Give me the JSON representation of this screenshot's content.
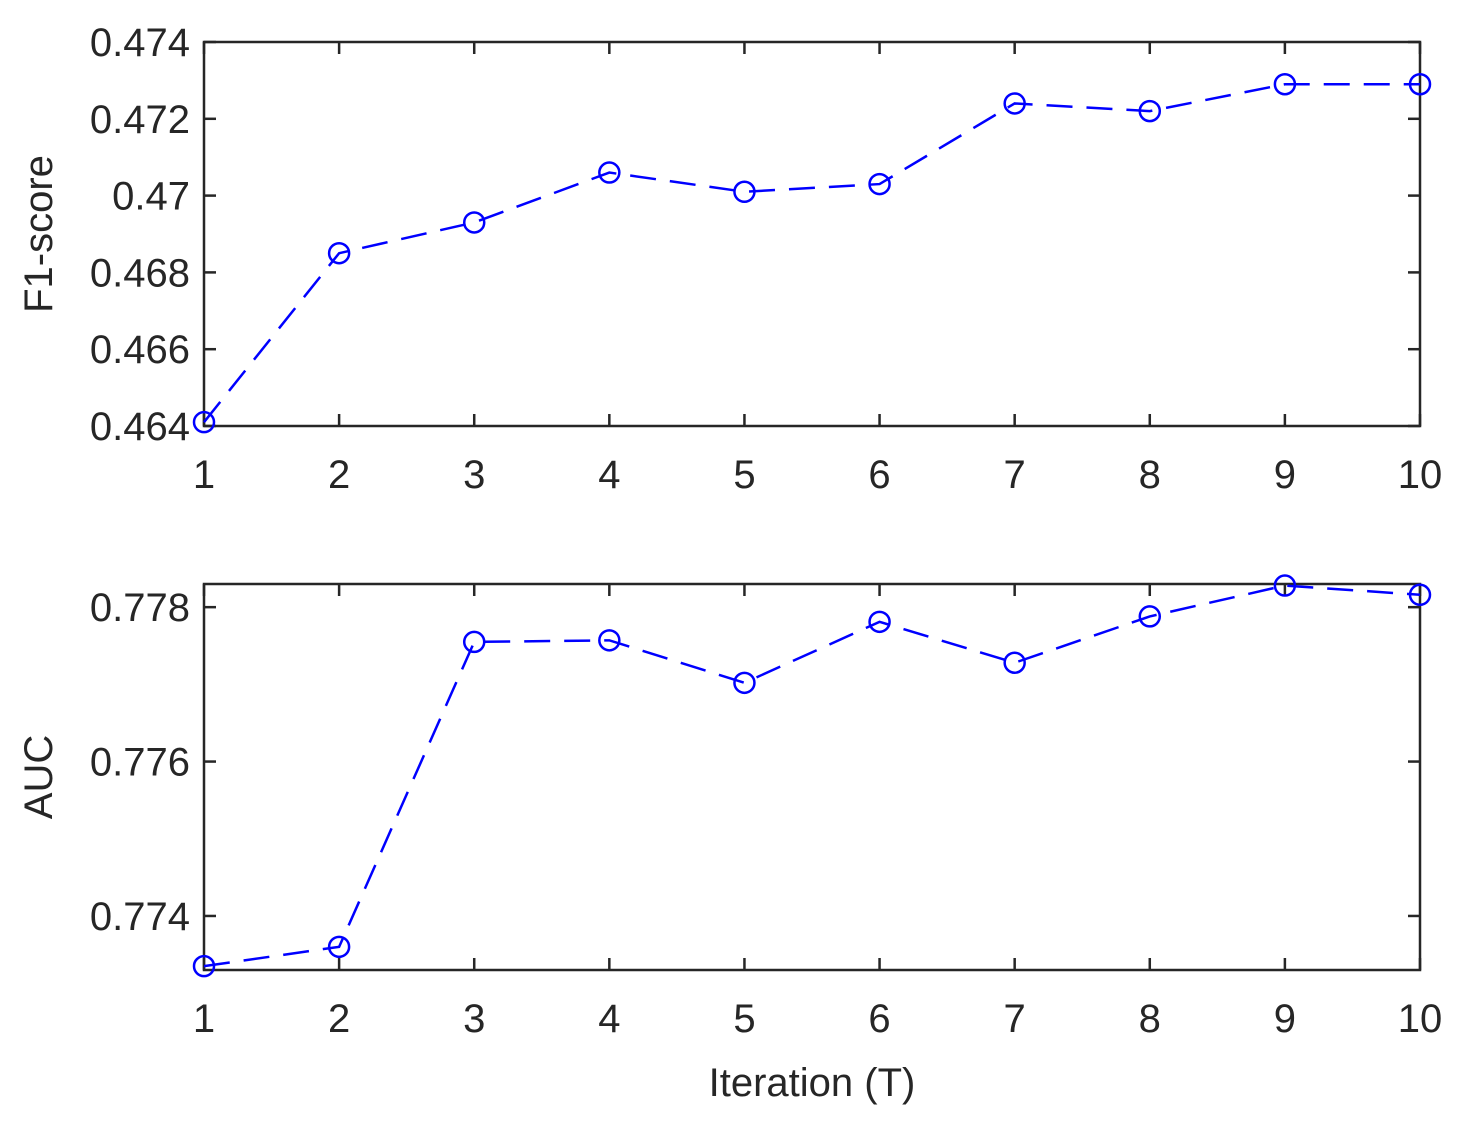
{
  "chart_data": [
    {
      "type": "line",
      "title": "",
      "xlabel": "",
      "ylabel": "F1-score",
      "x": [
        1,
        2,
        3,
        4,
        5,
        6,
        7,
        8,
        9,
        10
      ],
      "xlim": [
        1,
        10
      ],
      "ylim": [
        0.464,
        0.474
      ],
      "xticks": [
        1,
        2,
        3,
        4,
        5,
        6,
        7,
        8,
        9,
        10
      ],
      "xtick_labels": [
        "1",
        "2",
        "3",
        "4",
        "5",
        "6",
        "7",
        "8",
        "9",
        "10"
      ],
      "yticks": [
        0.464,
        0.466,
        0.468,
        0.47,
        0.472,
        0.474
      ],
      "ytick_labels": [
        "0.464",
        "0.466",
        "0.468",
        "0.47",
        "0.472",
        "0.474"
      ],
      "grid": false,
      "series": [
        {
          "values": [
            0.4641,
            0.4685,
            0.4693,
            0.4706,
            0.4701,
            0.4703,
            0.4724,
            0.4722,
            0.4729,
            0.4729
          ],
          "color": "#0000ff",
          "line_style": "dashed",
          "marker": "circle-open"
        }
      ]
    },
    {
      "type": "line",
      "title": "",
      "xlabel": "Iteration (T)",
      "ylabel": "AUC",
      "x": [
        1,
        2,
        3,
        4,
        5,
        6,
        7,
        8,
        9,
        10
      ],
      "xlim": [
        1,
        10
      ],
      "ylim": [
        0.7733,
        0.7783
      ],
      "xticks": [
        1,
        2,
        3,
        4,
        5,
        6,
        7,
        8,
        9,
        10
      ],
      "xtick_labels": [
        "1",
        "2",
        "3",
        "4",
        "5",
        "6",
        "7",
        "8",
        "9",
        "10"
      ],
      "yticks": [
        0.774,
        0.776,
        0.778
      ],
      "ytick_labels": [
        "0.774",
        "0.776",
        "0.778"
      ],
      "grid": false,
      "series": [
        {
          "values": [
            0.77335,
            0.7736,
            0.77755,
            0.77757,
            0.77702,
            0.77781,
            0.77728,
            0.77788,
            0.77828,
            0.77816
          ],
          "color": "#0000ff",
          "line_style": "dashed",
          "marker": "circle-open"
        }
      ]
    }
  ]
}
